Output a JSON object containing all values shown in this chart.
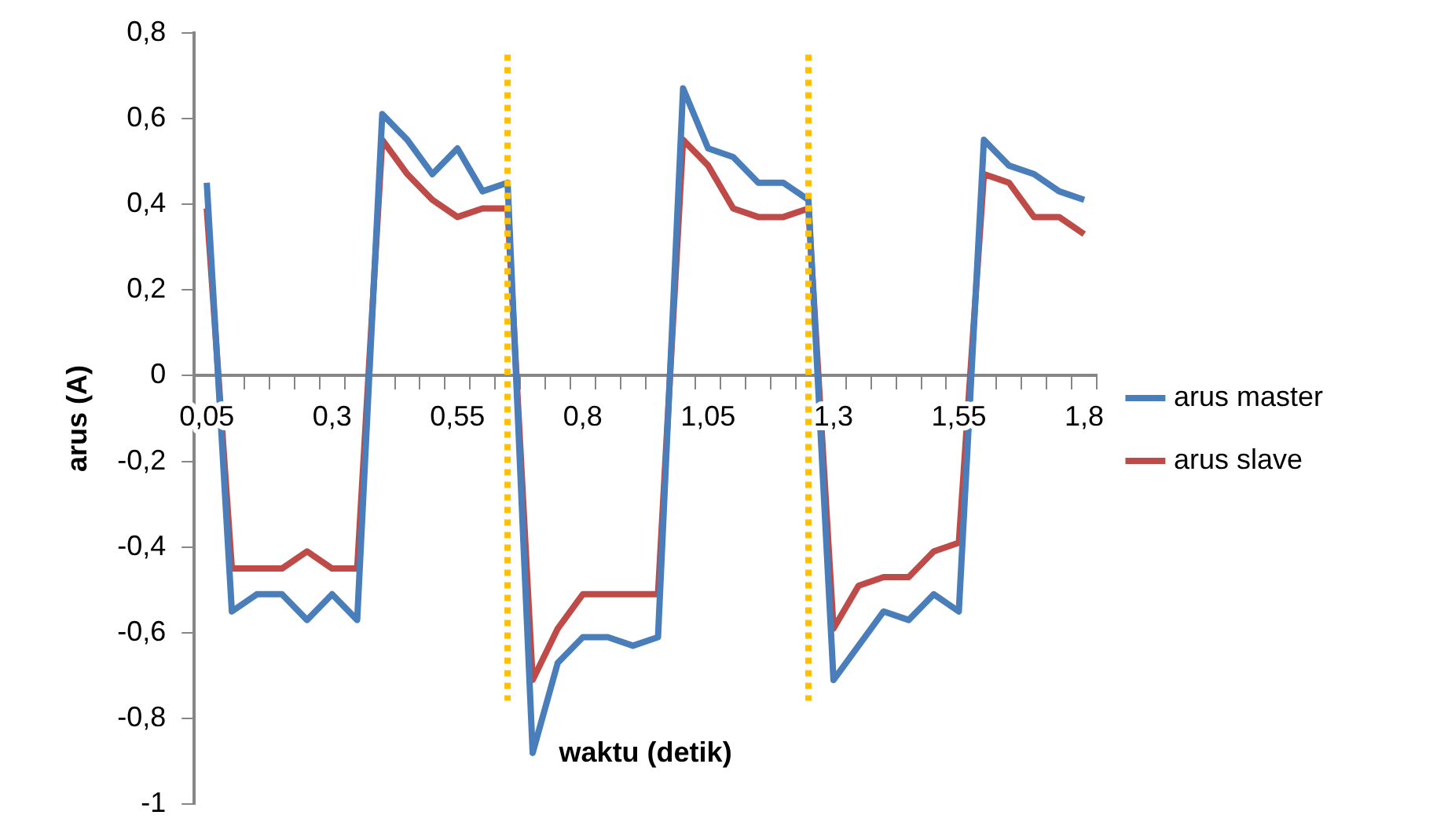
{
  "chart_data": {
    "type": "line",
    "xlabel": "waktu (detik)",
    "ylabel": "arus (A)",
    "x": [
      0.05,
      0.1,
      0.15,
      0.2,
      0.25,
      0.3,
      0.35,
      0.4,
      0.45,
      0.5,
      0.55,
      0.6,
      0.65,
      0.7,
      0.75,
      0.8,
      0.85,
      0.9,
      0.95,
      1.0,
      1.05,
      1.1,
      1.15,
      1.2,
      1.25,
      1.3,
      1.35,
      1.4,
      1.45,
      1.5,
      1.55,
      1.6,
      1.65,
      1.7,
      1.75,
      1.8
    ],
    "series": [
      {
        "name": "arus master",
        "color": "#4a7ebb",
        "values": [
          0.45,
          -0.55,
          -0.51,
          -0.51,
          -0.57,
          -0.51,
          -0.57,
          0.61,
          0.55,
          0.47,
          0.53,
          0.43,
          0.45,
          -0.88,
          -0.67,
          -0.61,
          -0.61,
          -0.63,
          -0.61,
          0.67,
          0.53,
          0.51,
          0.45,
          0.45,
          0.41,
          -0.71,
          -0.63,
          -0.55,
          -0.57,
          -0.51,
          -0.55,
          0.55,
          0.49,
          0.47,
          0.43,
          0.41
        ]
      },
      {
        "name": "arus slave",
        "color": "#be4b48",
        "values": [
          0.39,
          -0.45,
          -0.45,
          -0.45,
          -0.41,
          -0.45,
          -0.45,
          0.55,
          0.47,
          0.41,
          0.37,
          0.39,
          0.39,
          -0.71,
          -0.59,
          -0.51,
          -0.51,
          -0.51,
          -0.51,
          0.55,
          0.49,
          0.39,
          0.37,
          0.37,
          0.39,
          -0.59,
          -0.49,
          -0.47,
          -0.47,
          -0.41,
          -0.39,
          0.47,
          0.45,
          0.37,
          0.37,
          0.33
        ]
      }
    ],
    "xlim": [
      0.025,
      1.825
    ],
    "xticks": [
      {
        "value": 0.025,
        "label": null
      },
      {
        "value": 0.05,
        "label": "0,05"
      },
      {
        "value": 0.075,
        "label": null
      },
      {
        "value": 0.125,
        "label": null
      },
      {
        "value": 0.175,
        "label": null
      },
      {
        "value": 0.225,
        "label": null
      },
      {
        "value": 0.275,
        "label": null
      },
      {
        "value": 0.3,
        "label": "0,3"
      },
      {
        "value": 0.325,
        "label": null
      },
      {
        "value": 0.375,
        "label": null
      },
      {
        "value": 0.425,
        "label": null
      },
      {
        "value": 0.475,
        "label": null
      },
      {
        "value": 0.525,
        "label": null
      },
      {
        "value": 0.55,
        "label": "0,55"
      },
      {
        "value": 0.575,
        "label": null
      },
      {
        "value": 0.625,
        "label": null
      },
      {
        "value": 0.675,
        "label": null
      },
      {
        "value": 0.725,
        "label": null
      },
      {
        "value": 0.775,
        "label": null
      },
      {
        "value": 0.8,
        "label": "0,8"
      },
      {
        "value": 0.825,
        "label": null
      },
      {
        "value": 0.875,
        "label": null
      },
      {
        "value": 0.925,
        "label": null
      },
      {
        "value": 0.975,
        "label": null
      },
      {
        "value": 1.025,
        "label": null
      },
      {
        "value": 1.05,
        "label": "1,05"
      },
      {
        "value": 1.075,
        "label": null
      },
      {
        "value": 1.125,
        "label": null
      },
      {
        "value": 1.175,
        "label": null
      },
      {
        "value": 1.225,
        "label": null
      },
      {
        "value": 1.275,
        "label": null
      },
      {
        "value": 1.3,
        "label": "1,3"
      },
      {
        "value": 1.325,
        "label": null
      },
      {
        "value": 1.375,
        "label": null
      },
      {
        "value": 1.425,
        "label": null
      },
      {
        "value": 1.475,
        "label": null
      },
      {
        "value": 1.525,
        "label": null
      },
      {
        "value": 1.55,
        "label": "1,55"
      },
      {
        "value": 1.575,
        "label": null
      },
      {
        "value": 1.625,
        "label": null
      },
      {
        "value": 1.675,
        "label": null
      },
      {
        "value": 1.725,
        "label": null
      },
      {
        "value": 1.775,
        "label": null
      },
      {
        "value": 1.8,
        "label": "1,8"
      },
      {
        "value": 1.825,
        "label": null
      }
    ],
    "ylim": [
      -1,
      0.8
    ],
    "yticks": [
      -1,
      {
        "value": -0.8,
        "label": "-0,8"
      },
      {
        "value": -0.6,
        "label": "-0,6"
      },
      {
        "value": -0.4,
        "label": "-0,4"
      },
      {
        "value": -0.2,
        "label": "-0,2"
      },
      0,
      {
        "value": 0.2,
        "label": "0,2"
      },
      {
        "value": 0.4,
        "label": "0,4"
      },
      {
        "value": 0.6,
        "label": "0,6"
      },
      {
        "value": 0.8,
        "label": "0,8"
      }
    ],
    "ref_lines": [
      {
        "axis": "x",
        "value": 0.65,
        "color": "#ffc000",
        "line_style": "dotted"
      },
      {
        "axis": "x",
        "value": 1.25,
        "color": "#ffc000",
        "line_style": "dotted"
      }
    ],
    "grid": false,
    "legend": "right",
    "marker": "none",
    "line_style": "solid"
  }
}
